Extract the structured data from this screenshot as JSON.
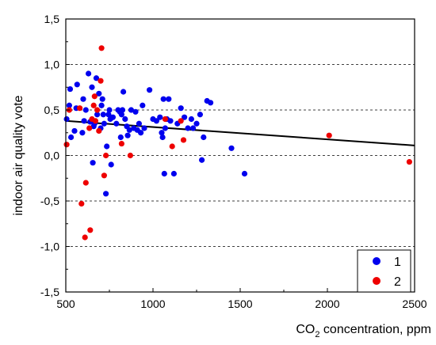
{
  "chart_data": {
    "type": "scatter",
    "xlabel_main": "CO",
    "xlabel_sub": "2",
    "xlabel_rest": " concentration, ppm",
    "ylabel": "indoor air quality vote",
    "xlim": [
      500,
      2500
    ],
    "ylim": [
      -1.5,
      1.5
    ],
    "x_ticks": [
      500,
      1000,
      1500,
      2000,
      2500
    ],
    "x_tick_labels": [
      "500",
      "1000",
      "1500",
      "2000",
      "2500"
    ],
    "y_ticks": [
      -1.5,
      -1.0,
      -0.5,
      0.0,
      0.5,
      1.0,
      1.5
    ],
    "y_tick_labels": [
      "-1,5",
      "-1,0",
      "-0,5",
      "0,0",
      "0,5",
      "1,0",
      "1,5"
    ],
    "grid": "horizontal dashed",
    "legend_position": "bottom-right",
    "series": [
      {
        "name": "1",
        "color": "#0000ee",
        "points": [
          [
            505,
            0.4
          ],
          [
            520,
            0.55
          ],
          [
            525,
            0.73
          ],
          [
            530,
            0.2
          ],
          [
            550,
            0.27
          ],
          [
            560,
            0.52
          ],
          [
            565,
            0.78
          ],
          [
            595,
            0.25
          ],
          [
            600,
            0.62
          ],
          [
            605,
            0.38
          ],
          [
            615,
            0.5
          ],
          [
            630,
            0.9
          ],
          [
            640,
            0.37
          ],
          [
            650,
            0.75
          ],
          [
            655,
            -0.08
          ],
          [
            660,
            0.32
          ],
          [
            665,
            0.35
          ],
          [
            675,
            0.85
          ],
          [
            680,
            0.45
          ],
          [
            690,
            0.68
          ],
          [
            700,
            0.3
          ],
          [
            705,
            0.55
          ],
          [
            710,
            0.62
          ],
          [
            715,
            0.45
          ],
          [
            720,
            0.35
          ],
          [
            730,
            -0.42
          ],
          [
            735,
            0.1
          ],
          [
            745,
            0.45
          ],
          [
            750,
            0.5
          ],
          [
            755,
            0.4
          ],
          [
            760,
            -0.1
          ],
          [
            770,
            0.42
          ],
          [
            790,
            0.35
          ],
          [
            800,
            0.5
          ],
          [
            810,
            0.48
          ],
          [
            815,
            0.2
          ],
          [
            820,
            0.45
          ],
          [
            825,
            0.5
          ],
          [
            830,
            0.7
          ],
          [
            840,
            0.4
          ],
          [
            850,
            0.32
          ],
          [
            855,
            0.22
          ],
          [
            865,
            0.28
          ],
          [
            875,
            0.5
          ],
          [
            890,
            0.3
          ],
          [
            900,
            0.48
          ],
          [
            910,
            0.28
          ],
          [
            920,
            0.35
          ],
          [
            930,
            0.25
          ],
          [
            940,
            0.55
          ],
          [
            950,
            0.3
          ],
          [
            980,
            0.72
          ],
          [
            1000,
            0.4
          ],
          [
            1020,
            0.38
          ],
          [
            1040,
            0.42
          ],
          [
            1050,
            0.25
          ],
          [
            1055,
            0.2
          ],
          [
            1060,
            0.62
          ],
          [
            1065,
            -0.2
          ],
          [
            1070,
            0.3
          ],
          [
            1080,
            0.4
          ],
          [
            1090,
            0.62
          ],
          [
            1100,
            0.38
          ],
          [
            1120,
            -0.2
          ],
          [
            1140,
            0.35
          ],
          [
            1160,
            0.52
          ],
          [
            1180,
            0.42
          ],
          [
            1200,
            0.3
          ],
          [
            1220,
            0.4
          ],
          [
            1230,
            0.3
          ],
          [
            1250,
            0.35
          ],
          [
            1270,
            0.45
          ],
          [
            1280,
            -0.05
          ],
          [
            1290,
            0.2
          ],
          [
            1310,
            0.6
          ],
          [
            1330,
            0.58
          ],
          [
            1450,
            0.08
          ],
          [
            1525,
            -0.2
          ]
        ]
      },
      {
        "name": "2",
        "color": "#ee0000",
        "points": [
          [
            505,
            0.12
          ],
          [
            520,
            0.5
          ],
          [
            580,
            0.52
          ],
          [
            590,
            -0.53
          ],
          [
            610,
            -0.9
          ],
          [
            615,
            -0.3
          ],
          [
            635,
            0.3
          ],
          [
            640,
            -0.82
          ],
          [
            650,
            0.4
          ],
          [
            660,
            0.55
          ],
          [
            665,
            0.65
          ],
          [
            670,
            0.38
          ],
          [
            680,
            0.5
          ],
          [
            690,
            0.27
          ],
          [
            700,
            0.82
          ],
          [
            705,
            1.18
          ],
          [
            720,
            -0.22
          ],
          [
            730,
            0.0
          ],
          [
            820,
            0.13
          ],
          [
            870,
            0.0
          ],
          [
            1070,
            0.4
          ],
          [
            1110,
            0.1
          ],
          [
            1160,
            0.38
          ],
          [
            1175,
            0.17
          ],
          [
            2010,
            0.22
          ],
          [
            2470,
            -0.07
          ]
        ]
      }
    ],
    "trend_line": {
      "x": [
        500,
        2500
      ],
      "y": [
        0.38,
        0.11
      ],
      "color": "#000000"
    }
  }
}
